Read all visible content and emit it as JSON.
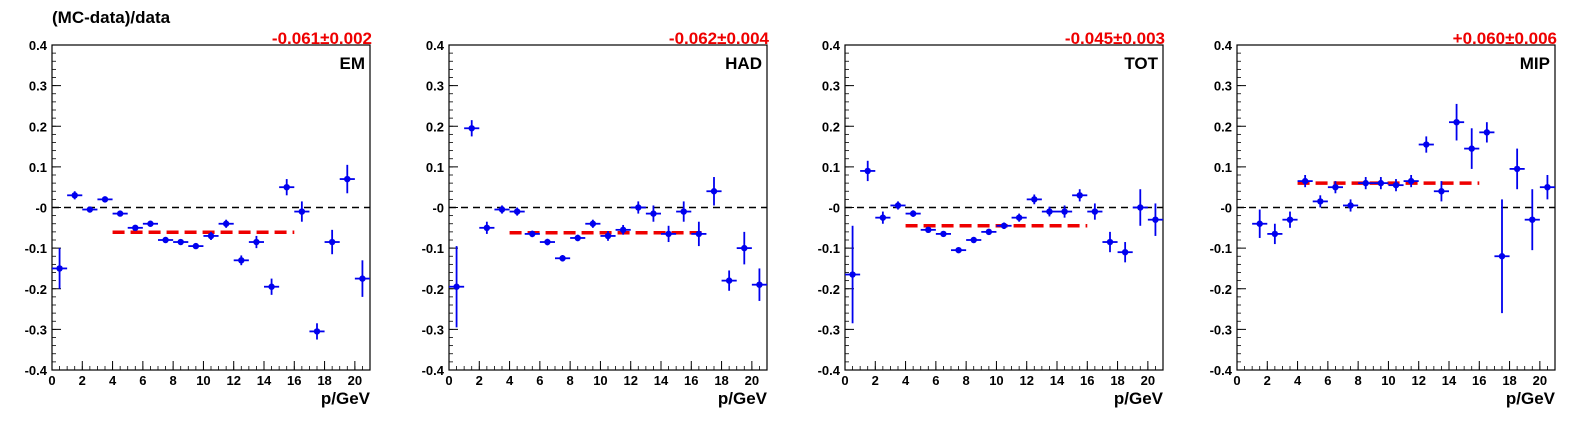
{
  "figure": {
    "ylabel": "(MC-data)/data"
  },
  "colors": {
    "points": "#0000ee",
    "fit": "#ee0000",
    "zero_line": "#000000",
    "axis": "#000000"
  },
  "chart_data": [
    {
      "type": "scatter",
      "name": "EM",
      "fit_label": "-0.061±0.002",
      "fit_value": -0.061,
      "fit_range": [
        4,
        16
      ],
      "xlabel": "p/GeV",
      "xlim": [
        0,
        21
      ],
      "ylim": [
        -0.4,
        0.4
      ],
      "xticks": [
        "0",
        "2",
        "4",
        "6",
        "8",
        "10",
        "12",
        "14",
        "16",
        "18",
        "20"
      ],
      "yticks": [
        "-0.4",
        "-0.3",
        "-0.2",
        "-0.1",
        "-0",
        "0.1",
        "0.2",
        "0.3",
        "0.4"
      ],
      "points": [
        {
          "x": 0.5,
          "y": -0.15,
          "ey": 0.05
        },
        {
          "x": 1.5,
          "y": 0.03,
          "ey": 0.01
        },
        {
          "x": 2.5,
          "y": -0.005,
          "ey": 0.005
        },
        {
          "x": 3.5,
          "y": 0.02,
          "ey": 0.007
        },
        {
          "x": 4.5,
          "y": -0.015,
          "ey": 0.006
        },
        {
          "x": 5.5,
          "y": -0.05,
          "ey": 0.006
        },
        {
          "x": 6.5,
          "y": -0.04,
          "ey": 0.006
        },
        {
          "x": 7.5,
          "y": -0.08,
          "ey": 0.006
        },
        {
          "x": 8.5,
          "y": -0.085,
          "ey": 0.006
        },
        {
          "x": 9.5,
          "y": -0.095,
          "ey": 0.007
        },
        {
          "x": 10.5,
          "y": -0.07,
          "ey": 0.01
        },
        {
          "x": 11.5,
          "y": -0.04,
          "ey": 0.01
        },
        {
          "x": 12.5,
          "y": -0.13,
          "ey": 0.012
        },
        {
          "x": 13.5,
          "y": -0.085,
          "ey": 0.015
        },
        {
          "x": 14.5,
          "y": -0.195,
          "ey": 0.02
        },
        {
          "x": 15.5,
          "y": 0.05,
          "ey": 0.02
        },
        {
          "x": 16.5,
          "y": -0.01,
          "ey": 0.025
        },
        {
          "x": 17.5,
          "y": -0.305,
          "ey": 0.02
        },
        {
          "x": 18.5,
          "y": -0.085,
          "ey": 0.03
        },
        {
          "x": 19.5,
          "y": 0.07,
          "ey": 0.035
        },
        {
          "x": 20.5,
          "y": -0.175,
          "ey": 0.045
        }
      ]
    },
    {
      "type": "scatter",
      "name": "HAD",
      "fit_label": "-0.062±0.004",
      "fit_value": -0.062,
      "fit_range": [
        4,
        17
      ],
      "xlabel": "p/GeV",
      "xlim": [
        0,
        21
      ],
      "ylim": [
        -0.4,
        0.4
      ],
      "xticks": [
        "0",
        "2",
        "4",
        "6",
        "8",
        "10",
        "12",
        "14",
        "16",
        "18",
        "20"
      ],
      "yticks": [
        "-0.4",
        "-0.3",
        "-0.2",
        "-0.1",
        "-0",
        "0.1",
        "0.2",
        "0.3",
        "0.4"
      ],
      "points": [
        {
          "x": 0.5,
          "y": -0.195,
          "ey": 0.1
        },
        {
          "x": 1.5,
          "y": 0.195,
          "ey": 0.02
        },
        {
          "x": 2.5,
          "y": -0.05,
          "ey": 0.015
        },
        {
          "x": 3.5,
          "y": -0.005,
          "ey": 0.01
        },
        {
          "x": 4.5,
          "y": -0.01,
          "ey": 0.01
        },
        {
          "x": 5.5,
          "y": -0.065,
          "ey": 0.008
        },
        {
          "x": 6.5,
          "y": -0.085,
          "ey": 0.008
        },
        {
          "x": 7.5,
          "y": -0.125,
          "ey": 0.008
        },
        {
          "x": 8.5,
          "y": -0.075,
          "ey": 0.008
        },
        {
          "x": 9.5,
          "y": -0.04,
          "ey": 0.01
        },
        {
          "x": 10.5,
          "y": -0.07,
          "ey": 0.012
        },
        {
          "x": 11.5,
          "y": -0.055,
          "ey": 0.012
        },
        {
          "x": 12.5,
          "y": 0.0,
          "ey": 0.015
        },
        {
          "x": 13.5,
          "y": -0.015,
          "ey": 0.02
        },
        {
          "x": 14.5,
          "y": -0.065,
          "ey": 0.02
        },
        {
          "x": 15.5,
          "y": -0.01,
          "ey": 0.025
        },
        {
          "x": 16.5,
          "y": -0.065,
          "ey": 0.03
        },
        {
          "x": 17.5,
          "y": 0.04,
          "ey": 0.035
        },
        {
          "x": 18.5,
          "y": -0.18,
          "ey": 0.025
        },
        {
          "x": 19.5,
          "y": -0.1,
          "ey": 0.04
        },
        {
          "x": 20.5,
          "y": -0.19,
          "ey": 0.04
        }
      ]
    },
    {
      "type": "scatter",
      "name": "TOT",
      "fit_label": "-0.045±0.003",
      "fit_value": -0.045,
      "fit_range": [
        4,
        16
      ],
      "xlabel": "p/GeV",
      "xlim": [
        0,
        21
      ],
      "ylim": [
        -0.4,
        0.4
      ],
      "xticks": [
        "0",
        "2",
        "4",
        "6",
        "8",
        "10",
        "12",
        "14",
        "16",
        "18",
        "20"
      ],
      "yticks": [
        "-0.4",
        "-0.3",
        "-0.2",
        "-0.1",
        "-0",
        "0.1",
        "0.2",
        "0.3",
        "0.4"
      ],
      "points": [
        {
          "x": 0.5,
          "y": -0.165,
          "ey": 0.12
        },
        {
          "x": 1.5,
          "y": 0.09,
          "ey": 0.025
        },
        {
          "x": 2.5,
          "y": -0.025,
          "ey": 0.015
        },
        {
          "x": 3.5,
          "y": 0.005,
          "ey": 0.01
        },
        {
          "x": 4.5,
          "y": -0.015,
          "ey": 0.008
        },
        {
          "x": 5.5,
          "y": -0.055,
          "ey": 0.007
        },
        {
          "x": 6.5,
          "y": -0.065,
          "ey": 0.006
        },
        {
          "x": 7.5,
          "y": -0.105,
          "ey": 0.006
        },
        {
          "x": 8.5,
          "y": -0.08,
          "ey": 0.006
        },
        {
          "x": 9.5,
          "y": -0.06,
          "ey": 0.006
        },
        {
          "x": 10.5,
          "y": -0.045,
          "ey": 0.008
        },
        {
          "x": 11.5,
          "y": -0.025,
          "ey": 0.01
        },
        {
          "x": 12.5,
          "y": 0.02,
          "ey": 0.012
        },
        {
          "x": 13.5,
          "y": -0.01,
          "ey": 0.012
        },
        {
          "x": 14.5,
          "y": -0.01,
          "ey": 0.015
        },
        {
          "x": 15.5,
          "y": 0.03,
          "ey": 0.015
        },
        {
          "x": 16.5,
          "y": -0.01,
          "ey": 0.02
        },
        {
          "x": 17.5,
          "y": -0.085,
          "ey": 0.025
        },
        {
          "x": 18.5,
          "y": -0.11,
          "ey": 0.025
        },
        {
          "x": 19.5,
          "y": 0.0,
          "ey": 0.045
        },
        {
          "x": 20.5,
          "y": -0.03,
          "ey": 0.04
        }
      ]
    },
    {
      "type": "scatter",
      "name": "MIP",
      "fit_label": "+0.060±0.006",
      "fit_value": 0.06,
      "fit_range": [
        4,
        16
      ],
      "xlabel": "p/GeV",
      "xlim": [
        0,
        21
      ],
      "ylim": [
        -0.4,
        0.4
      ],
      "xticks": [
        "0",
        "2",
        "4",
        "6",
        "8",
        "10",
        "12",
        "14",
        "16",
        "18",
        "20"
      ],
      "yticks": [
        "-0.4",
        "-0.3",
        "-0.2",
        "-0.1",
        "-0",
        "0.1",
        "0.2",
        "0.3",
        "0.4"
      ],
      "points": [
        {
          "x": 1.5,
          "y": -0.04,
          "ey": 0.035
        },
        {
          "x": 2.5,
          "y": -0.065,
          "ey": 0.025
        },
        {
          "x": 3.5,
          "y": -0.03,
          "ey": 0.02
        },
        {
          "x": 4.5,
          "y": 0.065,
          "ey": 0.015
        },
        {
          "x": 5.5,
          "y": 0.015,
          "ey": 0.015
        },
        {
          "x": 6.5,
          "y": 0.05,
          "ey": 0.015
        },
        {
          "x": 7.5,
          "y": 0.005,
          "ey": 0.015
        },
        {
          "x": 8.5,
          "y": 0.06,
          "ey": 0.015
        },
        {
          "x": 9.5,
          "y": 0.06,
          "ey": 0.015
        },
        {
          "x": 10.5,
          "y": 0.055,
          "ey": 0.015
        },
        {
          "x": 11.5,
          "y": 0.065,
          "ey": 0.015
        },
        {
          "x": 12.5,
          "y": 0.155,
          "ey": 0.02
        },
        {
          "x": 13.5,
          "y": 0.04,
          "ey": 0.025
        },
        {
          "x": 14.5,
          "y": 0.21,
          "ey": 0.045
        },
        {
          "x": 15.5,
          "y": 0.145,
          "ey": 0.05
        },
        {
          "x": 16.5,
          "y": 0.185,
          "ey": 0.025
        },
        {
          "x": 17.5,
          "y": -0.12,
          "ey": 0.14
        },
        {
          "x": 18.5,
          "y": 0.095,
          "ey": 0.05
        },
        {
          "x": 19.5,
          "y": -0.03,
          "ey": 0.075
        },
        {
          "x": 20.5,
          "y": 0.05,
          "ey": 0.03
        }
      ]
    }
  ]
}
